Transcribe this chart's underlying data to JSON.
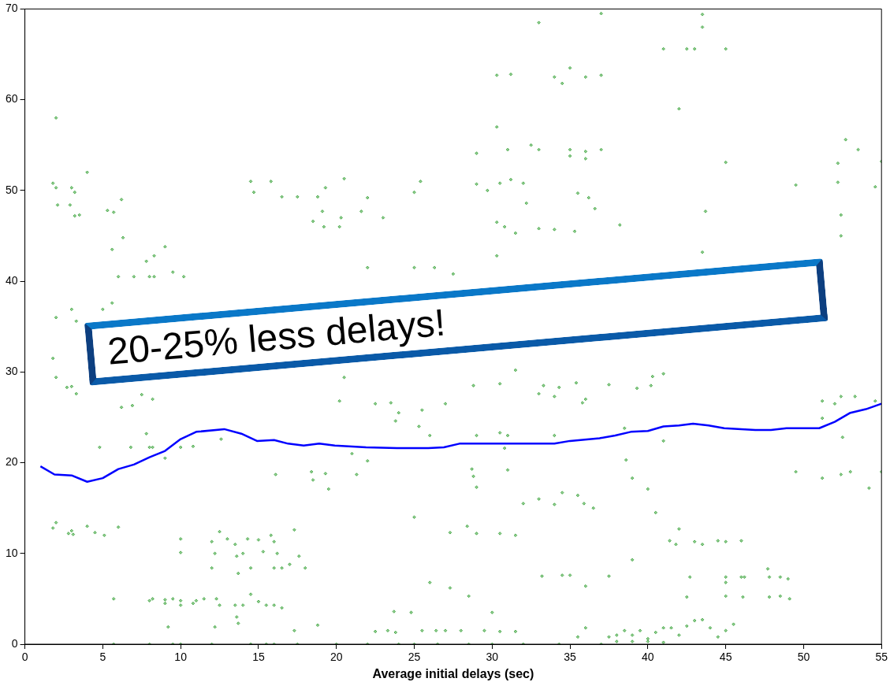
{
  "chart_data": {
    "type": "scatter",
    "xlabel": "Average initial delays (sec)",
    "xlim": [
      0,
      55
    ],
    "xticks": [
      0,
      5,
      10,
      15,
      20,
      25,
      30,
      35,
      40,
      45,
      50,
      55
    ],
    "ylim": [
      0,
      70
    ],
    "yticks": [
      0,
      10,
      20,
      30,
      40,
      50,
      60,
      70
    ],
    "grid": false,
    "legend": false,
    "annotations": [
      "20-25% less delays!"
    ],
    "series": [
      {
        "type": "scatter",
        "color": "#2e9e2e",
        "marker": "diamond",
        "x": [
          2,
          1.8,
          2,
          2.1,
          2.9,
          3,
          3.2,
          3.2,
          3.5,
          4,
          5.3,
          5.7,
          6.2,
          5.6,
          6.3,
          6,
          7,
          8,
          8.3,
          7.8,
          8.3,
          9,
          9.5,
          10.2,
          5.6,
          5,
          3,
          2,
          3.3,
          14.5,
          14.7,
          15.8,
          16.5,
          17.5,
          18.8,
          19.3,
          20.5,
          22,
          18.5,
          19.2,
          20.2,
          20.3,
          19.1,
          21.6,
          23,
          25,
          25.4,
          22,
          25,
          27.5,
          26.3,
          33,
          37,
          43.5,
          43.5,
          35,
          34,
          36,
          37,
          30.3,
          31.2,
          34.5,
          42,
          41,
          42.5,
          43,
          45,
          30.3,
          31,
          33,
          35,
          36,
          37,
          36,
          35,
          32.5,
          36.2,
          36.6,
          35.5,
          32,
          31.2,
          30.5,
          29.7,
          29,
          30.3,
          30.8,
          31.5,
          33,
          34,
          35.3,
          38.2,
          29,
          32.2,
          43.7,
          43.5,
          30.3,
          49.5,
          52.2,
          52.2,
          52.7,
          53.5,
          55,
          54.6,
          52.4,
          52.4,
          45,
          1.8,
          2,
          2.7,
          3,
          3.3,
          6.2,
          6.9,
          8.2,
          7.5,
          20.5,
          20.2,
          22.5,
          23.5,
          24,
          23.8,
          25.5,
          25.3,
          26,
          29,
          30.5,
          31,
          34,
          27,
          28.8,
          30.5,
          31.5,
          33.3,
          34.3,
          35.8,
          35.4,
          37.5,
          39.3,
          40.3,
          41,
          40.2,
          34,
          33,
          36,
          51.2,
          52.4,
          52,
          53.3,
          54.6,
          51.2,
          52.5,
          38.5,
          41,
          4.8,
          6.8,
          8,
          8.2,
          7.8,
          9,
          10,
          10.8,
          12.6,
          16.1,
          18.4,
          18.5,
          19.3,
          19.5,
          21.3,
          22,
          21,
          28.7,
          28.8,
          29,
          30.8,
          31,
          32,
          33,
          34,
          34.5,
          35.5,
          35.9,
          36.5,
          38.6,
          39,
          40,
          49.5,
          51.2,
          52.4,
          53,
          54.2,
          55,
          27.3,
          28.4,
          29,
          30.5,
          31.5,
          25,
          1.8,
          2,
          2.8,
          3,
          3.1,
          4,
          4.5,
          6,
          5.1,
          10,
          10,
          12.5,
          12,
          12.2,
          13,
          13.5,
          13.6,
          14,
          14.3,
          15,
          14.5,
          15.8,
          16,
          16.2,
          16,
          16.5,
          13.7,
          12,
          17,
          17.3,
          17.6,
          18,
          15.3,
          35,
          33.2,
          34.5,
          36,
          37.5,
          42.7,
          45,
          45,
          46,
          46.2,
          47.7,
          47.8,
          48.5,
          49,
          45,
          46.1,
          47.8,
          48.5,
          49.1,
          42.5,
          41.4,
          41.8,
          43,
          43.5,
          44.5,
          45,
          46,
          39,
          40.5,
          42,
          5.7,
          8,
          8.2,
          9,
          9,
          9.5,
          10,
          10,
          10.8,
          11,
          11.5,
          12.3,
          12.5,
          13.5,
          14,
          14.5,
          15,
          15.5,
          16,
          16.5,
          9.2,
          12.2,
          13.7,
          13.6,
          18.8,
          17.3,
          22.5,
          23.3,
          23.7,
          23.8,
          24.8,
          25.5,
          26.4,
          27,
          28,
          26,
          27.3,
          28.5,
          29.5,
          30,
          30.5,
          31.5,
          38,
          38.5,
          39,
          39.5,
          40,
          40.5,
          41,
          41.5,
          42,
          42.5,
          43,
          43.5,
          44,
          44.5,
          45,
          45.5,
          35.5,
          36,
          37.5,
          39,
          40,
          41,
          38,
          5.7,
          8,
          9.5,
          10,
          12,
          14.5,
          15.5,
          16,
          17.5,
          20,
          22,
          24,
          25,
          26.5,
          28.5,
          30,
          32,
          34.3,
          37
        ],
        "values": [
          58,
          50.8,
          50.3,
          48.4,
          48.4,
          50.3,
          49.8,
          47.2,
          47.3,
          52,
          47.8,
          47.6,
          49,
          43.5,
          44.8,
          40.5,
          40.5,
          40.5,
          40.5,
          42.2,
          42.8,
          43.8,
          41,
          40.5,
          37.6,
          36.9,
          36.9,
          36,
          35.6,
          51,
          49.8,
          51,
          49.3,
          49.3,
          49.3,
          50.3,
          51.3,
          49.2,
          46.6,
          46,
          46,
          47,
          47.7,
          47.7,
          47,
          49.8,
          51,
          41.5,
          41.5,
          40.8,
          41.5,
          68.5,
          69.5,
          69.4,
          68,
          63.5,
          62.5,
          62.5,
          62.7,
          62.7,
          62.8,
          61.8,
          59,
          65.6,
          65.6,
          65.6,
          65.6,
          57,
          54.5,
          54.5,
          54.5,
          54.3,
          54.5,
          53.5,
          53.8,
          55,
          49.2,
          48,
          49.7,
          50.8,
          51.2,
          50.8,
          50,
          50.7,
          46.5,
          46,
          45.3,
          45.8,
          45.7,
          45.5,
          46.2,
          54.1,
          48.6,
          47.7,
          43.2,
          42.8,
          50.6,
          53,
          50.9,
          55.6,
          54.5,
          53.2,
          50.4,
          47.3,
          45,
          53.1,
          31.5,
          29.4,
          28.3,
          28.4,
          27.6,
          26.1,
          26.3,
          27,
          27.5,
          29.4,
          26.8,
          26.5,
          26.6,
          25.5,
          24.6,
          25.8,
          24,
          23,
          23,
          23.3,
          23,
          23,
          26.5,
          28.5,
          28.7,
          30.2,
          28.5,
          28.3,
          26.6,
          28.8,
          28.6,
          28.2,
          29.5,
          29.8,
          28.5,
          27.3,
          27.6,
          27,
          26.8,
          27.3,
          26.5,
          27.3,
          26.8,
          24.9,
          22.8,
          23.8,
          22.4,
          21.7,
          21.7,
          21.7,
          21.7,
          23.2,
          20.5,
          21.7,
          21.8,
          22.6,
          18.7,
          19,
          18.1,
          18.8,
          17.1,
          18.7,
          20.2,
          21,
          19.3,
          18.5,
          17.3,
          21.6,
          19.2,
          15.5,
          16,
          15.4,
          16.7,
          16.4,
          15.5,
          15,
          20.3,
          18.3,
          17.1,
          19,
          18.3,
          18.7,
          19,
          17.2,
          19,
          12.3,
          13,
          12.2,
          12.2,
          12,
          14,
          12.8,
          13.4,
          12.2,
          12.5,
          12.1,
          13,
          12.3,
          12.9,
          12,
          11.6,
          10.1,
          12.4,
          11.3,
          10,
          11.6,
          11,
          9.7,
          10,
          11.6,
          11.5,
          8.4,
          12,
          11.3,
          10,
          8.4,
          8.4,
          7.8,
          8.4,
          8.8,
          12.6,
          9.7,
          8.4,
          10.2,
          7.6,
          7.5,
          7.6,
          6.4,
          7.5,
          7.4,
          7.4,
          6.8,
          7.4,
          7.4,
          8.3,
          7.4,
          7.4,
          7.2,
          5.3,
          5.2,
          5.2,
          5.3,
          5,
          5.2,
          11.4,
          11,
          11.3,
          11,
          11.4,
          11.3,
          11.4,
          9.3,
          14.5,
          12.7,
          5,
          4.8,
          5,
          4.9,
          4.5,
          5,
          4.8,
          4.3,
          4.5,
          4.8,
          5,
          5,
          4.3,
          4.3,
          4.3,
          5.5,
          4.7,
          4.3,
          4.3,
          4,
          1.9,
          1.9,
          2.3,
          3,
          2.1,
          1.5,
          1.4,
          1.5,
          3.6,
          1.3,
          3.5,
          1.5,
          1.5,
          1.5,
          1.5,
          6.8,
          6.2,
          5.3,
          1.5,
          3.5,
          1.4,
          1.4,
          1,
          1.5,
          1,
          1.5,
          0.6,
          1.3,
          1.8,
          1.8,
          1,
          2,
          2.6,
          2.7,
          1.8,
          0.8,
          1.5,
          2.2,
          0.8,
          1.8,
          0.8,
          0.3,
          0.3,
          0.2,
          0.3,
          0,
          0,
          0,
          0,
          0,
          0,
          0,
          0,
          0,
          0,
          0,
          0,
          0,
          0,
          0,
          0,
          0,
          0,
          0
        ]
      },
      {
        "type": "line",
        "color": "#0000ff",
        "marker": "none",
        "line_style": "solid",
        "x": [
          1,
          1.9,
          3,
          4,
          5,
          6,
          7,
          8,
          9,
          10,
          11,
          12.8,
          13.9,
          14.9,
          16,
          16.9,
          17.9,
          18.9,
          19.9,
          21.9,
          23.9,
          25.9,
          26.9,
          27.9,
          29.9,
          31.9,
          34,
          35,
          36.9,
          37.9,
          38.9,
          40,
          41,
          42,
          42.9,
          43.9,
          44.9,
          46,
          46.9,
          47.9,
          48.9,
          51,
          52,
          53,
          54,
          55
        ],
        "values": [
          19.6,
          18.7,
          18.6,
          17.9,
          18.3,
          19.3,
          19.8,
          20.6,
          21.3,
          22.6,
          23.4,
          23.7,
          23.2,
          22.4,
          22.5,
          22.1,
          21.9,
          22.1,
          21.9,
          21.7,
          21.6,
          21.6,
          21.7,
          22.1,
          22.1,
          22.1,
          22.1,
          22.4,
          22.7,
          23,
          23.4,
          23.5,
          24,
          24.1,
          24.3,
          24.1,
          23.8,
          23.7,
          23.6,
          23.6,
          23.8,
          23.8,
          24.5,
          25.5,
          25.9,
          26.5
        ]
      }
    ]
  }
}
